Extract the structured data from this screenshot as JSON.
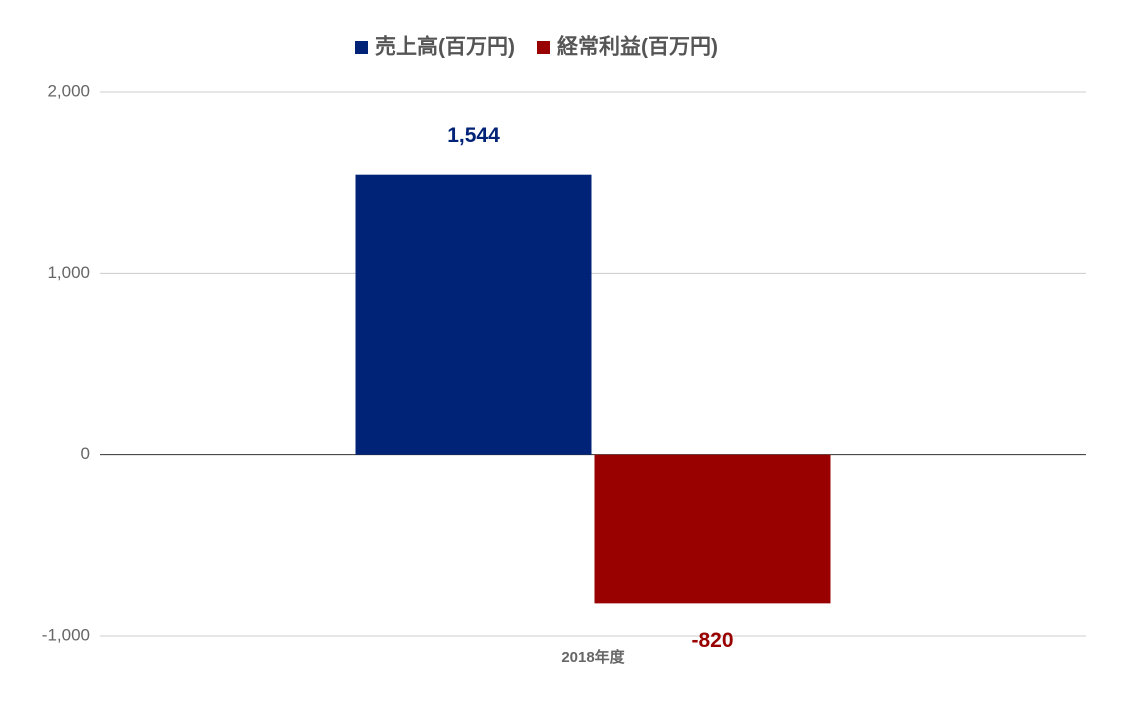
{
  "chart_data": {
    "type": "bar",
    "categories": [
      "2018年度"
    ],
    "series": [
      {
        "name": "売上高(百万円)",
        "color": "#002277",
        "values": [
          1544
        ],
        "value_labels": [
          "1,544"
        ]
      },
      {
        "name": "経常利益(百万円)",
        "color": "#990000",
        "values": [
          -820
        ]
      }
    ],
    "ylim": [
      -1000,
      2000
    ],
    "yticks": [
      {
        "value": -1000,
        "label": "-1,000"
      },
      0,
      {
        "value": 1000,
        "label": "1,000"
      },
      {
        "value": 2000,
        "label": "2,000"
      }
    ],
    "grid": true,
    "legend": "top"
  }
}
